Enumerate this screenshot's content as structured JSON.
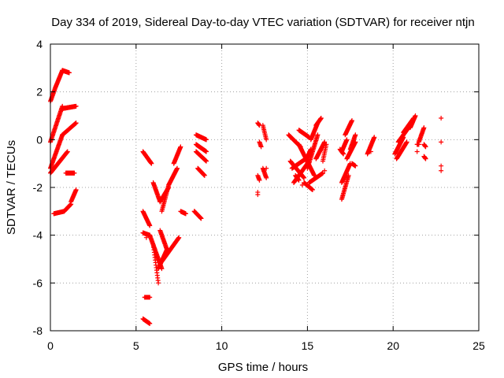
{
  "chart_data": {
    "type": "scatter",
    "title": "Day 334 of 2019, Sidereal Day-to-day VTEC variation (SDTVAR) for receiver ntjn",
    "xlabel": "GPS time / hours",
    "ylabel": "SDTVAR / TECUs",
    "xlim": [
      0,
      25
    ],
    "ylim": [
      -8,
      4
    ],
    "xticks": [
      0,
      5,
      10,
      15,
      20,
      25
    ],
    "yticks": [
      -8,
      -6,
      -4,
      -2,
      0,
      2,
      4
    ],
    "grid": true,
    "marker": "+",
    "color": "#ff0000",
    "segments": [
      {
        "x0": 0.0,
        "x1": 0.3,
        "y0": 1.6,
        "y1": 2.2
      },
      {
        "x0": 0.3,
        "x1": 0.7,
        "y0": 2.2,
        "y1": 2.9
      },
      {
        "x0": 0.7,
        "x1": 1.1,
        "y0": 2.9,
        "y1": 2.8
      },
      {
        "x0": 0.0,
        "x1": 0.7,
        "y0": -0.1,
        "y1": 1.4
      },
      {
        "x0": 0.7,
        "x1": 1.5,
        "y0": 1.3,
        "y1": 1.4
      },
      {
        "x0": 0.0,
        "x1": 0.7,
        "y0": -1.2,
        "y1": 0.2
      },
      {
        "x0": 0.7,
        "x1": 1.5,
        "y0": 0.2,
        "y1": 0.7
      },
      {
        "x0": 0.0,
        "x1": 1.0,
        "y0": -1.4,
        "y1": -0.5
      },
      {
        "x0": 0.2,
        "x1": 0.8,
        "y0": -3.1,
        "y1": -3.0
      },
      {
        "x0": 0.8,
        "x1": 1.2,
        "y0": -3.0,
        "y1": -2.7
      },
      {
        "x0": 1.2,
        "x1": 1.5,
        "y0": -2.6,
        "y1": -2.1
      },
      {
        "x0": 0.9,
        "x1": 1.4,
        "y0": -1.4,
        "y1": -1.4
      },
      {
        "x0": 5.4,
        "x1": 5.8,
        "y0": -0.5,
        "y1": -0.9
      },
      {
        "x0": 5.8,
        "x1": 5.9,
        "y0": -0.9,
        "y1": -1.0
      },
      {
        "x0": 5.4,
        "x1": 5.8,
        "y0": -3.0,
        "y1": -3.6
      },
      {
        "x0": 5.4,
        "x1": 5.8,
        "y0": -3.9,
        "y1": -4.0
      },
      {
        "x0": 5.8,
        "x1": 6.5,
        "y0": -4.0,
        "y1": -5.4
      },
      {
        "x0": 6.5,
        "x1": 7.5,
        "y0": -5.1,
        "y1": -4.1
      },
      {
        "x0": 6.0,
        "x1": 6.3,
        "y0": -4.4,
        "y1": -6.0
      },
      {
        "x0": 6.3,
        "x1": 6.8,
        "y0": -5.4,
        "y1": -4.6
      },
      {
        "x0": 6.4,
        "x1": 6.8,
        "y0": -3.8,
        "y1": -4.6
      },
      {
        "x0": 6.0,
        "x1": 6.4,
        "y0": -1.8,
        "y1": -2.6
      },
      {
        "x0": 6.4,
        "x1": 6.9,
        "y0": -2.6,
        "y1": -2.0
      },
      {
        "x0": 6.9,
        "x1": 7.4,
        "y0": -1.9,
        "y1": -1.2
      },
      {
        "x0": 6.5,
        "x1": 6.9,
        "y0": -3.0,
        "y1": -1.9
      },
      {
        "x0": 7.2,
        "x1": 7.6,
        "y0": -1.0,
        "y1": -0.3
      },
      {
        "x0": 5.5,
        "x1": 5.8,
        "y0": -6.6,
        "y1": -6.6
      },
      {
        "x0": 5.4,
        "x1": 5.8,
        "y0": -7.5,
        "y1": -7.7
      },
      {
        "x0": 8.5,
        "x1": 9.1,
        "y0": -0.2,
        "y1": -0.5
      },
      {
        "x0": 8.5,
        "x1": 9.1,
        "y0": 0.2,
        "y1": 0.0
      },
      {
        "x0": 8.5,
        "x1": 9.1,
        "y0": -0.5,
        "y1": -0.9
      },
      {
        "x0": 8.6,
        "x1": 9.0,
        "y0": -1.2,
        "y1": -1.5
      },
      {
        "x0": 8.4,
        "x1": 8.8,
        "y0": -3.0,
        "y1": -3.3
      },
      {
        "x0": 7.6,
        "x1": 7.9,
        "y0": -3.0,
        "y1": -3.1
      },
      {
        "x0": 12.1,
        "x1": 12.2,
        "y0": 0.7,
        "y1": 0.6
      },
      {
        "x0": 12.1,
        "x1": 12.2,
        "y0": -1.5,
        "y1": -1.7
      },
      {
        "x0": 12.1,
        "x1": 12.1,
        "y0": -2.2,
        "y1": -2.3
      },
      {
        "x0": 12.2,
        "x1": 12.3,
        "y0": -0.1,
        "y1": -0.3
      },
      {
        "x0": 12.4,
        "x1": 12.6,
        "y0": 0.6,
        "y1": 0.0
      },
      {
        "x0": 12.4,
        "x1": 12.6,
        "y0": -1.2,
        "y1": -1.6
      },
      {
        "x0": 13.9,
        "x1": 14.6,
        "y0": 0.2,
        "y1": -0.3
      },
      {
        "x0": 14.0,
        "x1": 14.8,
        "y0": -0.9,
        "y1": -1.6
      },
      {
        "x0": 14.1,
        "x1": 14.9,
        "y0": -1.2,
        "y1": -0.8
      },
      {
        "x0": 14.2,
        "x1": 15.0,
        "y0": -1.8,
        "y1": -1.0
      },
      {
        "x0": 14.5,
        "x1": 15.4,
        "y0": -0.2,
        "y1": -1.5
      },
      {
        "x0": 14.5,
        "x1": 15.1,
        "y0": 0.4,
        "y1": 0.1
      },
      {
        "x0": 14.3,
        "x1": 14.5,
        "y0": -1.5,
        "y1": -1.7
      },
      {
        "x0": 14.8,
        "x1": 15.3,
        "y0": -1.8,
        "y1": -2.1
      },
      {
        "x0": 15.0,
        "x1": 15.6,
        "y0": -1.2,
        "y1": 0.2
      },
      {
        "x0": 15.2,
        "x1": 15.6,
        "y0": 0.0,
        "y1": 0.7
      },
      {
        "x0": 15.5,
        "x1": 15.8,
        "y0": 0.6,
        "y1": 0.9
      },
      {
        "x0": 15.1,
        "x1": 15.9,
        "y0": -1.8,
        "y1": -1.4
      },
      {
        "x0": 15.5,
        "x1": 16.0,
        "y0": -0.8,
        "y1": -0.1
      },
      {
        "x0": 14.9,
        "x1": 15.2,
        "y0": -0.9,
        "y1": -0.4
      },
      {
        "x0": 15.9,
        "x1": 16.1,
        "y0": -0.9,
        "y1": -0.2
      },
      {
        "x0": 17.0,
        "x1": 17.4,
        "y0": -2.5,
        "y1": -1.5
      },
      {
        "x0": 17.0,
        "x1": 17.5,
        "y0": -1.8,
        "y1": -1.0
      },
      {
        "x0": 17.0,
        "x1": 17.3,
        "y0": -0.5,
        "y1": 0.0
      },
      {
        "x0": 17.2,
        "x1": 17.6,
        "y0": 0.2,
        "y1": 0.8
      },
      {
        "x0": 17.3,
        "x1": 17.8,
        "y0": -0.8,
        "y1": -0.1
      },
      {
        "x0": 17.5,
        "x1": 17.8,
        "y0": -0.4,
        "y1": 0.2
      },
      {
        "x0": 17.6,
        "x1": 17.8,
        "y0": -1.0,
        "y1": -1.1
      },
      {
        "x0": 16.9,
        "x1": 17.1,
        "y0": -0.4,
        "y1": -0.6
      },
      {
        "x0": 18.5,
        "x1": 18.9,
        "y0": -0.6,
        "y1": 0.1
      },
      {
        "x0": 20.1,
        "x1": 20.6,
        "y0": -0.6,
        "y1": 0.1
      },
      {
        "x0": 20.2,
        "x1": 20.8,
        "y0": -0.8,
        "y1": -0.1
      },
      {
        "x0": 20.3,
        "x1": 21.0,
        "y0": -0.1,
        "y1": 0.6
      },
      {
        "x0": 20.6,
        "x1": 21.2,
        "y0": 0.3,
        "y1": 0.9
      },
      {
        "x0": 21.0,
        "x1": 21.3,
        "y0": 0.5,
        "y1": 1.0
      },
      {
        "x0": 21.4,
        "x1": 21.5,
        "y0": -0.2,
        "y1": -0.2
      },
      {
        "x0": 21.5,
        "x1": 21.8,
        "y0": -0.1,
        "y1": 0.5
      },
      {
        "x0": 21.8,
        "x1": 21.9,
        "y0": -0.2,
        "y1": -0.3
      },
      {
        "x0": 21.8,
        "x1": 21.9,
        "y0": -0.7,
        "y1": -0.8
      }
    ],
    "points": [
      [
        22.8,
        0.9
      ],
      [
        22.8,
        -0.1
      ],
      [
        22.8,
        -1.1
      ],
      [
        22.8,
        -1.3
      ],
      [
        12.6,
        -1.2
      ],
      [
        8.4,
        -3.0
      ],
      [
        5.6,
        -4.1
      ],
      [
        14.7,
        -1.9
      ],
      [
        16.0,
        -1.3
      ],
      [
        17.3,
        -1.6
      ],
      [
        18.7,
        -0.5
      ],
      [
        21.4,
        -0.5
      ]
    ]
  }
}
